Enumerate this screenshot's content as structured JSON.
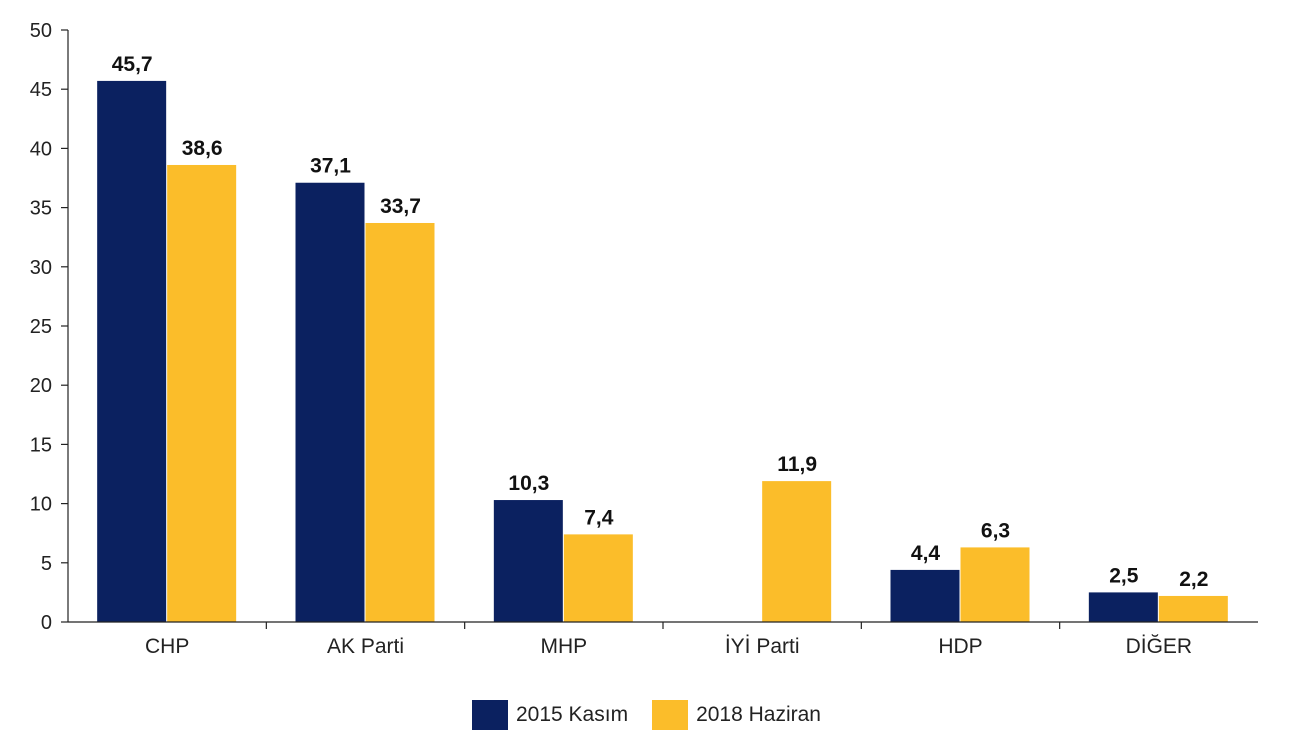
{
  "chart_data": {
    "type": "bar",
    "categories": [
      "CHP",
      "AK Parti",
      "MHP",
      "İYİ Parti",
      "HDP",
      "DİĞER"
    ],
    "series": [
      {
        "name": "2015 Kasım",
        "color": "#0b2160",
        "values": [
          45.7,
          37.1,
          10.3,
          null,
          4.4,
          2.5
        ],
        "labels": [
          "45,7",
          "37,1",
          "10,3",
          "",
          "4,4",
          "2,5"
        ]
      },
      {
        "name": "2018 Haziran",
        "color": "#fbbd2a",
        "values": [
          38.6,
          33.7,
          7.4,
          11.9,
          6.3,
          2.2
        ],
        "labels": [
          "38,6",
          "33,7",
          "7,4",
          "11,9",
          "6,3",
          "2,2"
        ]
      }
    ],
    "ylim": [
      0,
      50
    ],
    "yticks": [
      0,
      5,
      10,
      15,
      20,
      25,
      30,
      35,
      40,
      45,
      50
    ],
    "grid": false,
    "legend_position": "bottom-center"
  }
}
